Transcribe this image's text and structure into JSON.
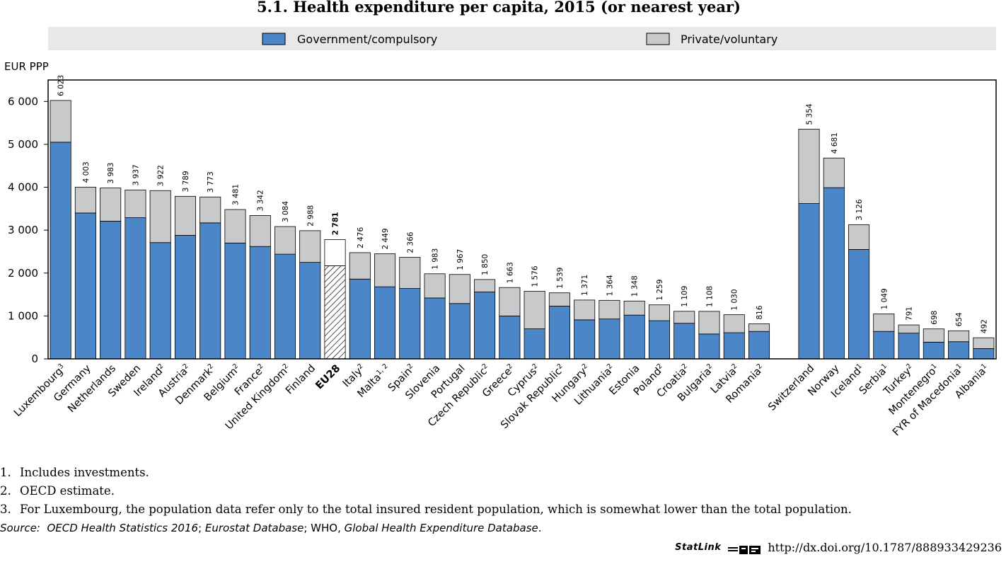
{
  "chart_data": {
    "type": "bar",
    "stacked": true,
    "title": "5.1.  Health expenditure per capita, 2015 (or nearest year)",
    "ylabel": "EUR PPP",
    "ylim": [
      0,
      6500
    ],
    "yticks": [
      0,
      1000,
      2000,
      3000,
      4000,
      5000,
      6000
    ],
    "ytick_labels": [
      "0",
      "1 000",
      "2 000",
      "3 000",
      "4 000",
      "5 000",
      "6 000"
    ],
    "grid": false,
    "legend_position": "top",
    "legend": [
      {
        "name": "Government/compulsory",
        "color": "#4A86C8"
      },
      {
        "name": "Private/voluntary",
        "color": "#C8C9CB"
      }
    ],
    "categories": [
      {
        "name": "Luxembourg",
        "sup": "3",
        "gov": 5050,
        "total": 6023,
        "label": "6 023"
      },
      {
        "name": "Germany",
        "sup": "",
        "gov": 3400,
        "total": 4003,
        "label": "4 003"
      },
      {
        "name": "Netherlands",
        "sup": "",
        "gov": 3210,
        "total": 3983,
        "label": "3 983"
      },
      {
        "name": "Sweden",
        "sup": "",
        "gov": 3290,
        "total": 3937,
        "label": "3 937"
      },
      {
        "name": "Ireland",
        "sup": "2",
        "gov": 2710,
        "total": 3922,
        "label": "3 922"
      },
      {
        "name": "Austria",
        "sup": "2",
        "gov": 2880,
        "total": 3789,
        "label": "3 789"
      },
      {
        "name": "Denmark",
        "sup": "2",
        "gov": 3170,
        "total": 3773,
        "label": "3 773"
      },
      {
        "name": "Belgium",
        "sup": "2",
        "gov": 2700,
        "total": 3481,
        "label": "3 481"
      },
      {
        "name": "France",
        "sup": "2",
        "gov": 2620,
        "total": 3342,
        "label": "3 342"
      },
      {
        "name": "United Kingdom",
        "sup": "2",
        "gov": 2440,
        "total": 3084,
        "label": "3 084"
      },
      {
        "name": "Finland",
        "sup": "",
        "gov": 2250,
        "total": 2988,
        "label": "2 988"
      },
      {
        "name": "EU28",
        "sup": "",
        "gov": 2170,
        "total": 2781,
        "label": "2 781",
        "highlight": true
      },
      {
        "name": "Italy",
        "sup": "2",
        "gov": 1860,
        "total": 2476,
        "label": "2 476"
      },
      {
        "name": "Malta",
        "sup": "1, 2",
        "gov": 1680,
        "total": 2449,
        "label": "2 449"
      },
      {
        "name": "Spain",
        "sup": "2",
        "gov": 1640,
        "total": 2366,
        "label": "2 366"
      },
      {
        "name": "Slovenia",
        "sup": "",
        "gov": 1420,
        "total": 1983,
        "label": "1 983"
      },
      {
        "name": "Portugal",
        "sup": "",
        "gov": 1290,
        "total": 1967,
        "label": "1 967"
      },
      {
        "name": "Czech Republic",
        "sup": "2",
        "gov": 1560,
        "total": 1850,
        "label": "1 850"
      },
      {
        "name": "Greece",
        "sup": "2",
        "gov": 1000,
        "total": 1663,
        "label": "1 663"
      },
      {
        "name": "Cyprus",
        "sup": "2",
        "gov": 700,
        "total": 1576,
        "label": "1 576"
      },
      {
        "name": "Slovak Republic",
        "sup": "2",
        "gov": 1230,
        "total": 1539,
        "label": "1 539"
      },
      {
        "name": "Hungary",
        "sup": "2",
        "gov": 910,
        "total": 1371,
        "label": "1 371"
      },
      {
        "name": "Lithuania",
        "sup": "2",
        "gov": 930,
        "total": 1364,
        "label": "1 364"
      },
      {
        "name": "Estonia",
        "sup": "",
        "gov": 1020,
        "total": 1348,
        "label": "1 348"
      },
      {
        "name": "Poland",
        "sup": "2",
        "gov": 890,
        "total": 1259,
        "label": "1 259"
      },
      {
        "name": "Croatia",
        "sup": "2",
        "gov": 830,
        "total": 1109,
        "label": "1 109"
      },
      {
        "name": "Bulgaria",
        "sup": "2",
        "gov": 580,
        "total": 1108,
        "label": "1 108"
      },
      {
        "name": "Latvia",
        "sup": "2",
        "gov": 610,
        "total": 1030,
        "label": "1 030"
      },
      {
        "name": "Romania",
        "sup": "2",
        "gov": 640,
        "total": 816,
        "label": "816"
      },
      null,
      {
        "name": "Switzerland",
        "sup": "",
        "gov": 3620,
        "total": 5354,
        "label": "5 354"
      },
      {
        "name": "Norway",
        "sup": "",
        "gov": 3990,
        "total": 4681,
        "label": "4 681"
      },
      {
        "name": "Iceland",
        "sup": "1",
        "gov": 2550,
        "total": 3126,
        "label": "3 126"
      },
      {
        "name": "Serbia",
        "sup": "1",
        "gov": 640,
        "total": 1049,
        "label": "1 049"
      },
      {
        "name": "Turkey",
        "sup": "2",
        "gov": 600,
        "total": 791,
        "label": "791"
      },
      {
        "name": "Montenegro",
        "sup": "1",
        "gov": 390,
        "total": 698,
        "label": "698"
      },
      {
        "name": "FYR of Macedonia",
        "sup": "1",
        "gov": 400,
        "total": 654,
        "label": "654"
      },
      {
        "name": "Albania",
        "sup": "1",
        "gov": 240,
        "total": 492,
        "label": "492"
      }
    ]
  },
  "notes": [
    {
      "num": "1.",
      "text": "Includes investments."
    },
    {
      "num": "2.",
      "text": "OECD estimate."
    },
    {
      "num": "3.",
      "text": "For Luxembourg, the population data refer only to the total insured resident population, which is somewhat lower than the total population."
    }
  ],
  "source": {
    "label": "Source:",
    "part1": "OECD Health Statistics 2016",
    "sep1": "; ",
    "part2": "Eurostat Database",
    "sep2": "; WHO, ",
    "part3": "Global Health Expenditure Database",
    "end": "."
  },
  "statlink": {
    "brand": "StatLink",
    "url": "http://dx.doi.org/10.1787/888933429236"
  },
  "colors": {
    "government": "#4A86C8",
    "private": "#C8C9CB",
    "legend_bg": "#E8E8E8"
  }
}
